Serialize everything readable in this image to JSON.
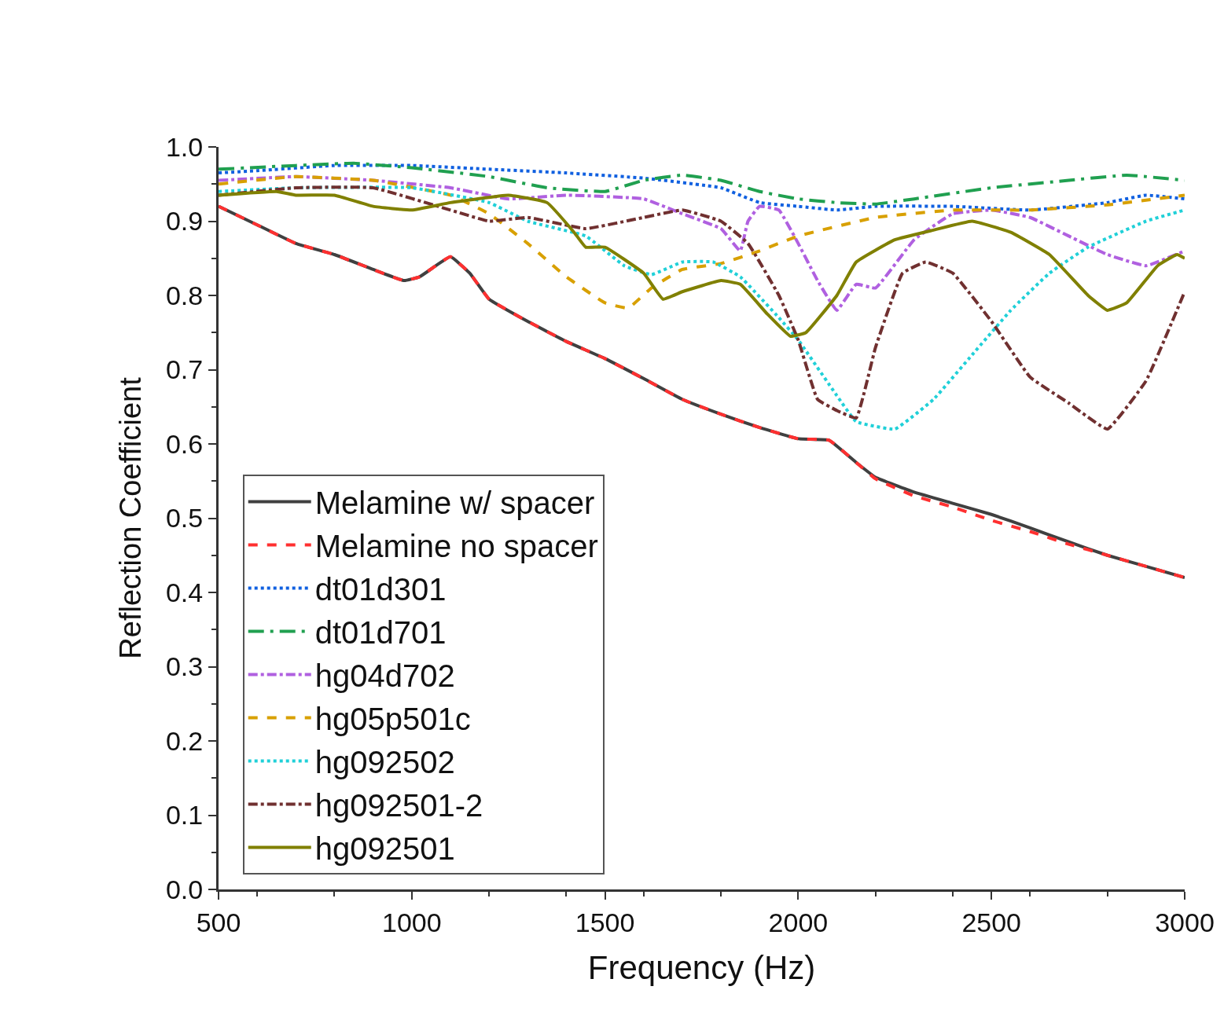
{
  "chart_data": {
    "type": "line",
    "xlabel": "Frequency (Hz)",
    "ylabel": "Reflection Coefficient",
    "xlim": [
      500,
      3000
    ],
    "xticks": [
      500,
      1000,
      1500,
      2000,
      2500,
      3000
    ],
    "ylim": [
      0,
      1
    ],
    "yticks": [
      {
        "value": 0,
        "label": "0.0"
      },
      {
        "value": 0.1,
        "label": "0.1"
      },
      {
        "value": 0.2,
        "label": "0.2"
      },
      {
        "value": 0.3,
        "label": "0.3"
      },
      {
        "value": 0.4,
        "label": "0.4"
      },
      {
        "value": 0.5,
        "label": "0.5"
      },
      {
        "value": 0.6,
        "label": "0.6"
      },
      {
        "value": 0.7,
        "label": "0.7"
      },
      {
        "value": 0.8,
        "label": "0.8"
      },
      {
        "value": 0.9,
        "label": "0.9"
      },
      {
        "value": 1,
        "label": "1.0"
      }
    ],
    "legend": "bottom left",
    "marker": "none",
    "series": [
      {
        "name": "Melamine w/ spacer",
        "color": "#404040",
        "line_style": "solid",
        "x": [
          500,
          600,
          700,
          800,
          900,
          980,
          1020,
          1100,
          1150,
          1200,
          1300,
          1400,
          1500,
          1600,
          1700,
          1800,
          1900,
          2000,
          2080,
          2150,
          2200,
          2300,
          2400,
          2500,
          2600,
          2700,
          2800,
          2900,
          3000
        ],
        "values": [
          0.92,
          0.895,
          0.87,
          0.855,
          0.835,
          0.82,
          0.825,
          0.852,
          0.83,
          0.795,
          0.765,
          0.738,
          0.715,
          0.688,
          0.66,
          0.64,
          0.622,
          0.607,
          0.605,
          0.575,
          0.555,
          0.535,
          0.52,
          0.505,
          0.487,
          0.468,
          0.45,
          0.435,
          0.42
        ]
      },
      {
        "name": "Melamine no spacer",
        "color": "#ff3030",
        "line_style": "dashed",
        "x": [
          500,
          600,
          700,
          800,
          900,
          980,
          1020,
          1100,
          1150,
          1200,
          1300,
          1400,
          1500,
          1600,
          1700,
          1800,
          1900,
          2000,
          2080,
          2150,
          2200,
          2300,
          2400,
          2500,
          2600,
          2700,
          2800,
          2900,
          3000
        ],
        "values": [
          0.92,
          0.895,
          0.87,
          0.855,
          0.835,
          0.82,
          0.825,
          0.852,
          0.83,
          0.795,
          0.765,
          0.738,
          0.715,
          0.688,
          0.66,
          0.64,
          0.622,
          0.607,
          0.605,
          0.575,
          0.553,
          0.53,
          0.515,
          0.497,
          0.482,
          0.465,
          0.45,
          0.435,
          0.42
        ]
      },
      {
        "name": "dt01d301",
        "color": "#1060e0",
        "line_style": "dotted",
        "x": [
          500,
          600,
          800,
          1000,
          1200,
          1400,
          1600,
          1800,
          1900,
          2000,
          2100,
          2200,
          2400,
          2600,
          2800,
          2900,
          3000
        ],
        "values": [
          0.965,
          0.968,
          0.975,
          0.975,
          0.97,
          0.965,
          0.958,
          0.945,
          0.925,
          0.92,
          0.915,
          0.92,
          0.92,
          0.915,
          0.925,
          0.935,
          0.93
        ]
      },
      {
        "name": "dt01d701",
        "color": "#20a050",
        "line_style": "longdashdot",
        "x": [
          500,
          700,
          850,
          1000,
          1200,
          1350,
          1500,
          1600,
          1700,
          1800,
          1900,
          2000,
          2100,
          2200,
          2300,
          2500,
          2700,
          2850,
          3000
        ],
        "values": [
          0.97,
          0.975,
          0.978,
          0.972,
          0.96,
          0.945,
          0.94,
          0.955,
          0.962,
          0.955,
          0.94,
          0.93,
          0.925,
          0.923,
          0.93,
          0.945,
          0.955,
          0.962,
          0.955
        ]
      },
      {
        "name": "hg04d702",
        "color": "#b060e0",
        "line_style": "dashdot",
        "x": [
          500,
          700,
          900,
          1100,
          1250,
          1400,
          1600,
          1700,
          1800,
          1850,
          1870,
          1900,
          1950,
          2000,
          2050,
          2100,
          2150,
          2200,
          2300,
          2400,
          2500,
          2600,
          2700,
          2800,
          2900,
          3000
        ],
        "values": [
          0.955,
          0.96,
          0.955,
          0.945,
          0.93,
          0.935,
          0.93,
          0.91,
          0.89,
          0.86,
          0.9,
          0.92,
          0.915,
          0.87,
          0.82,
          0.78,
          0.815,
          0.81,
          0.875,
          0.91,
          0.915,
          0.905,
          0.88,
          0.855,
          0.84,
          0.86
        ]
      },
      {
        "name": "hg05p501c",
        "color": "#d8a000",
        "line_style": "dashed",
        "x": [
          500,
          700,
          900,
          1100,
          1200,
          1300,
          1400,
          1500,
          1560,
          1620,
          1700,
          1800,
          1900,
          2000,
          2200,
          2400,
          2600,
          2800,
          3000
        ],
        "values": [
          0.95,
          0.96,
          0.955,
          0.935,
          0.91,
          0.87,
          0.825,
          0.79,
          0.783,
          0.81,
          0.835,
          0.843,
          0.86,
          0.88,
          0.905,
          0.915,
          0.915,
          0.922,
          0.935
        ]
      },
      {
        "name": "hg092502",
        "color": "#20d0d8",
        "line_style": "dotted",
        "x": [
          500,
          700,
          1000,
          1200,
          1300,
          1450,
          1550,
          1620,
          1700,
          1780,
          1850,
          1950,
          2000,
          2100,
          2150,
          2250,
          2350,
          2450,
          2550,
          2650,
          2750,
          2900,
          3000
        ],
        "values": [
          0.94,
          0.945,
          0.945,
          0.925,
          0.9,
          0.88,
          0.84,
          0.828,
          0.845,
          0.845,
          0.825,
          0.77,
          0.74,
          0.665,
          0.63,
          0.62,
          0.66,
          0.72,
          0.78,
          0.83,
          0.865,
          0.9,
          0.915
        ]
      },
      {
        "name": "hg092501-2",
        "color": "#703030",
        "line_style": "dashdot",
        "x": [
          500,
          700,
          900,
          1100,
          1200,
          1300,
          1450,
          1600,
          1700,
          1800,
          1870,
          1950,
          2000,
          2050,
          2100,
          2150,
          2200,
          2270,
          2330,
          2400,
          2500,
          2600,
          2700,
          2800,
          2900,
          3000
        ],
        "values": [
          0.935,
          0.945,
          0.945,
          0.915,
          0.9,
          0.905,
          0.89,
          0.905,
          0.915,
          0.9,
          0.87,
          0.8,
          0.74,
          0.66,
          0.645,
          0.635,
          0.73,
          0.83,
          0.845,
          0.83,
          0.765,
          0.69,
          0.655,
          0.62,
          0.685,
          0.805
        ]
      },
      {
        "name": "hg092501",
        "color": "#808000",
        "line_style": "solid",
        "x": [
          500,
          650,
          700,
          800,
          900,
          1000,
          1100,
          1250,
          1350,
          1420,
          1450,
          1500,
          1600,
          1650,
          1700,
          1800,
          1850,
          1920,
          1980,
          2020,
          2100,
          2150,
          2250,
          2350,
          2450,
          2550,
          2650,
          2750,
          2800,
          2850,
          2930,
          2980,
          3000
        ],
        "values": [
          0.935,
          0.94,
          0.935,
          0.935,
          0.92,
          0.915,
          0.925,
          0.935,
          0.925,
          0.885,
          0.865,
          0.865,
          0.83,
          0.795,
          0.805,
          0.82,
          0.815,
          0.775,
          0.745,
          0.75,
          0.8,
          0.845,
          0.875,
          0.888,
          0.9,
          0.885,
          0.855,
          0.8,
          0.78,
          0.79,
          0.84,
          0.855,
          0.85
        ]
      }
    ]
  }
}
